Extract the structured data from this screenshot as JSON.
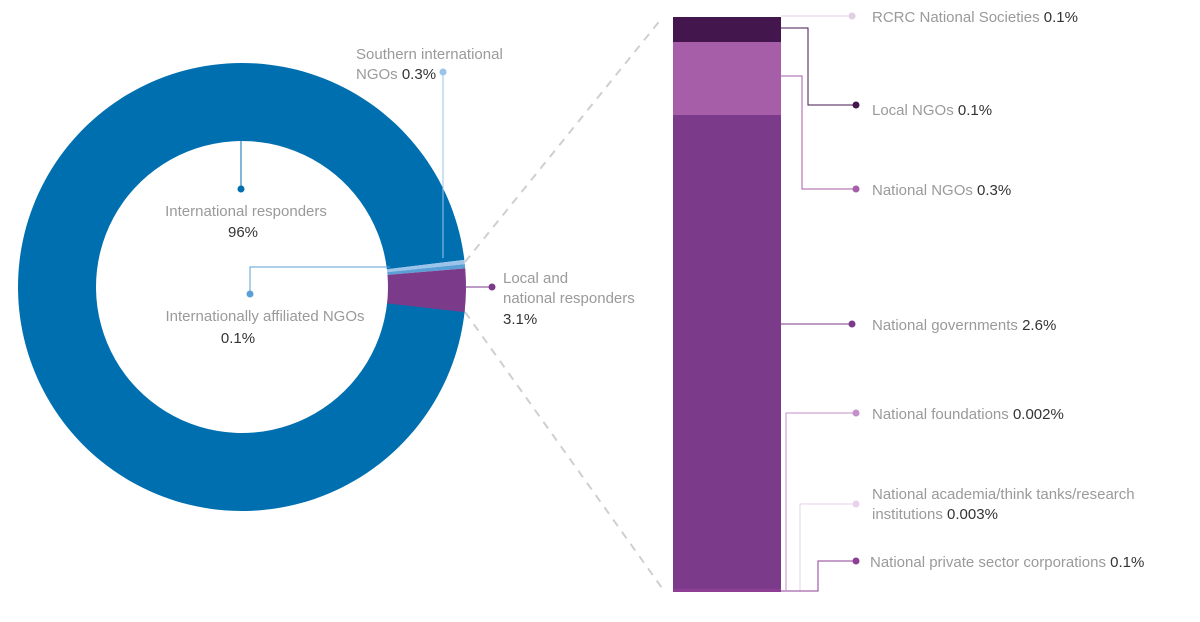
{
  "chart_data": [
    {
      "type": "pie",
      "variant": "donut",
      "slices": [
        {
          "key": "intl",
          "value": 96,
          "color": "#006fb0",
          "name_lines": [
            "International responders"
          ],
          "value_label": "96%"
        },
        {
          "key": "southern",
          "value": 0.3,
          "color": "#9cc3ea",
          "name_lines": [
            "Southern international",
            "NGOs"
          ],
          "value_label": "0.3%"
        },
        {
          "key": "affiliated",
          "value": 0.1,
          "color": "#5aa0d6",
          "name_lines": [
            "Internationally affiliated NGOs"
          ],
          "value_label": "0.1%"
        },
        {
          "key": "local",
          "value": 3.1,
          "color": "#7b3a8a",
          "name_lines": [
            "Local and",
            "national responders"
          ],
          "value_label": "3.1%"
        }
      ]
    },
    {
      "type": "bar",
      "variant": "stacked-breakdown",
      "segments": [
        {
          "key": "rcrc",
          "label": "RCRC National Societies",
          "value_label": "0.1%",
          "value": 0.1,
          "color": "#e2cfe5"
        },
        {
          "key": "local_ngos",
          "label": "Local NGOs",
          "value_label": "0.1%",
          "value": 0.1,
          "color": "#43174d"
        },
        {
          "key": "national_ngos",
          "label": "National NGOs",
          "value_label": "0.3%",
          "value": 0.3,
          "color": "#a65ea8"
        },
        {
          "key": "gov",
          "label": "National governments",
          "value_label": "2.6%",
          "value": 2.6,
          "color": "#7b3a8a"
        },
        {
          "key": "found",
          "label": "National foundations",
          "value_label": "0.002%",
          "value": 0.002,
          "color": "#c48fcb"
        },
        {
          "key": "academia",
          "label": "National academia/think tanks/research institutions",
          "label_lines": [
            "National academia/think tanks/research",
            "institutions"
          ],
          "value_label": "0.003%",
          "value": 0.003,
          "color": "#e6d3e8"
        },
        {
          "key": "private",
          "label": "National private sector corporations",
          "value_label": "0.1%",
          "value": 0.1,
          "color": "#8e3e95"
        }
      ]
    }
  ]
}
